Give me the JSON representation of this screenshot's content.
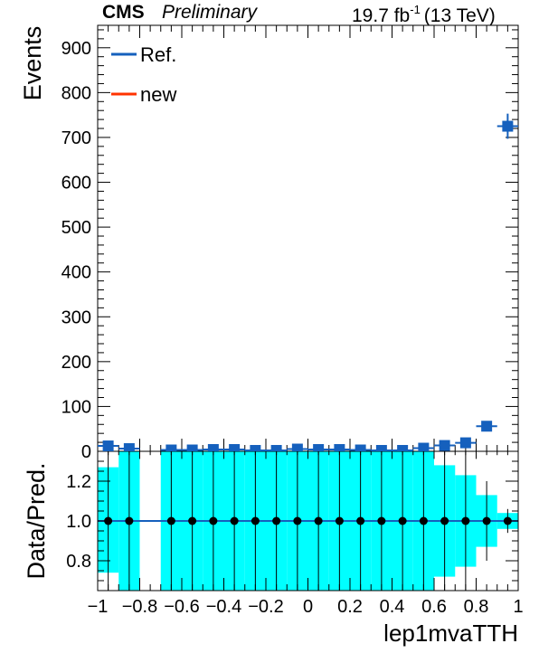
{
  "header": {
    "experiment": "CMS",
    "status": "Preliminary",
    "lumi": "19.7 fb",
    "lumi_sup": "-1",
    "energy": "(13 TeV)"
  },
  "colors": {
    "ref": "#1560bd",
    "new": "#ff3300",
    "band": "#00ffff",
    "marker": "#000000"
  },
  "chart_data": [
    {
      "type": "scatter",
      "panel": "main",
      "xlabel": "lep1mvaTTH",
      "ylabel": "Events",
      "xlim": [
        -1,
        1
      ],
      "ylim": [
        0,
        950
      ],
      "yticks": [
        0,
        100,
        200,
        300,
        400,
        500,
        600,
        700,
        800,
        900
      ],
      "legend": {
        "placement": "top-left",
        "entries": [
          "Ref.",
          "new"
        ]
      },
      "series": [
        {
          "name": "Ref.",
          "x": [
            -0.95,
            -0.85,
            -0.65,
            -0.55,
            -0.45,
            -0.35,
            -0.25,
            -0.15,
            -0.05,
            0.05,
            0.15,
            0.25,
            0.35,
            0.45,
            0.55,
            0.65,
            0.75,
            0.85,
            0.95
          ],
          "y": [
            12,
            6,
            3,
            3,
            4,
            4,
            2,
            2,
            5,
            4,
            4,
            3,
            2,
            2,
            7,
            13,
            19,
            56,
            725
          ],
          "yerr": [
            4,
            3,
            2,
            2,
            2,
            2,
            2,
            2,
            2,
            2,
            2,
            2,
            2,
            2,
            3,
            4,
            5,
            8,
            28
          ]
        },
        {
          "name": "new",
          "x": [],
          "y": []
        }
      ]
    },
    {
      "type": "scatter",
      "panel": "ratio",
      "xlabel": "lep1mvaTTH",
      "ylabel": "Data/Pred.",
      "xlim": [
        -1,
        1
      ],
      "ylim": [
        0.65,
        1.35
      ],
      "yticks": [
        0.8,
        1.0,
        1.2
      ],
      "ytick_labels": [
        "0.8",
        "1.0",
        "1.2"
      ],
      "xticks": [
        -1,
        -0.8,
        -0.6,
        -0.4,
        -0.2,
        0,
        0.2,
        0.4,
        0.6,
        0.8,
        1
      ],
      "xtick_labels": [
        "−1",
        "−0.8",
        "−0.6",
        "−0.4",
        "−0.2",
        "0",
        "0.2",
        "0.4",
        "0.6",
        "0.8",
        "1"
      ],
      "x": [
        -0.95,
        -0.85,
        -0.65,
        -0.55,
        -0.45,
        -0.35,
        -0.25,
        -0.15,
        -0.05,
        0.05,
        0.15,
        0.25,
        0.35,
        0.45,
        0.55,
        0.65,
        0.75,
        0.85,
        0.95
      ],
      "y": [
        1,
        1,
        1,
        1,
        1,
        1,
        1,
        1,
        1,
        1,
        1,
        1,
        1,
        1,
        1,
        1,
        1,
        1,
        1
      ],
      "band_bins": [
        {
          "lo": -1.0,
          "hi": -0.9,
          "down": 0.74,
          "up": 1.27
        },
        {
          "lo": -0.9,
          "hi": -0.8,
          "down": 0.5,
          "up": 1.5
        },
        {
          "lo": -0.7,
          "hi": -0.6,
          "down": 0.5,
          "up": 1.5
        },
        {
          "lo": -0.6,
          "hi": -0.5,
          "down": 0.5,
          "up": 1.5
        },
        {
          "lo": -0.5,
          "hi": -0.4,
          "down": 0.5,
          "up": 1.5
        },
        {
          "lo": -0.4,
          "hi": -0.3,
          "down": 0.5,
          "up": 1.5
        },
        {
          "lo": -0.3,
          "hi": -0.2,
          "down": 0.5,
          "up": 1.5
        },
        {
          "lo": -0.2,
          "hi": -0.1,
          "down": 0.5,
          "up": 1.5
        },
        {
          "lo": -0.1,
          "hi": 0.0,
          "down": 0.5,
          "up": 1.5
        },
        {
          "lo": 0.0,
          "hi": 0.1,
          "down": 0.5,
          "up": 1.5
        },
        {
          "lo": 0.1,
          "hi": 0.2,
          "down": 0.5,
          "up": 1.5
        },
        {
          "lo": 0.2,
          "hi": 0.3,
          "down": 0.5,
          "up": 1.5
        },
        {
          "lo": 0.3,
          "hi": 0.4,
          "down": 0.5,
          "up": 1.5
        },
        {
          "lo": 0.4,
          "hi": 0.5,
          "down": 0.5,
          "up": 1.5
        },
        {
          "lo": 0.5,
          "hi": 0.6,
          "down": 0.5,
          "up": 1.5
        },
        {
          "lo": 0.6,
          "hi": 0.7,
          "down": 0.72,
          "up": 1.28
        },
        {
          "lo": 0.7,
          "hi": 0.8,
          "down": 0.77,
          "up": 1.23
        },
        {
          "lo": 0.8,
          "hi": 0.9,
          "down": 0.87,
          "up": 1.13
        },
        {
          "lo": 0.9,
          "hi": 1.0,
          "down": 0.96,
          "up": 1.04
        }
      ],
      "error_bars": [
        {
          "x": -0.95,
          "down": 0.5,
          "up": 1.5
        },
        {
          "x": -0.85,
          "down": 0.5,
          "up": 1.5
        },
        {
          "x": -0.65,
          "down": 0.5,
          "up": 1.5
        },
        {
          "x": -0.55,
          "down": 0.5,
          "up": 1.5
        },
        {
          "x": -0.45,
          "down": 0.5,
          "up": 1.5
        },
        {
          "x": -0.35,
          "down": 0.5,
          "up": 1.5
        },
        {
          "x": -0.25,
          "down": 0.5,
          "up": 1.5
        },
        {
          "x": -0.15,
          "down": 0.5,
          "up": 1.5
        },
        {
          "x": -0.05,
          "down": 0.5,
          "up": 1.5
        },
        {
          "x": 0.05,
          "down": 0.5,
          "up": 1.5
        },
        {
          "x": 0.15,
          "down": 0.5,
          "up": 1.5
        },
        {
          "x": 0.25,
          "down": 0.5,
          "up": 1.5
        },
        {
          "x": 0.35,
          "down": 0.5,
          "up": 1.5
        },
        {
          "x": 0.45,
          "down": 0.5,
          "up": 1.5
        },
        {
          "x": 0.55,
          "down": 0.5,
          "up": 1.5
        },
        {
          "x": 0.65,
          "down": 0.5,
          "up": 1.5
        },
        {
          "x": 0.75,
          "down": 0.5,
          "up": 1.5
        },
        {
          "x": 0.85,
          "down": 0.8,
          "up": 1.2
        },
        {
          "x": 0.95,
          "down": 0.94,
          "up": 1.06
        }
      ],
      "reference_line": 1.0
    }
  ]
}
